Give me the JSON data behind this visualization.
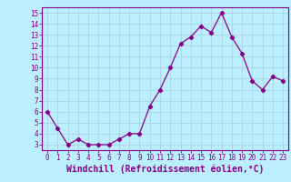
{
  "x": [
    0,
    1,
    2,
    3,
    4,
    5,
    6,
    7,
    8,
    9,
    10,
    11,
    12,
    13,
    14,
    15,
    16,
    17,
    18,
    19,
    20,
    21,
    22,
    23
  ],
  "y": [
    6.0,
    4.5,
    3.0,
    3.5,
    3.0,
    3.0,
    3.0,
    3.5,
    4.0,
    4.0,
    6.5,
    8.0,
    10.0,
    12.2,
    12.8,
    13.8,
    13.2,
    15.0,
    12.8,
    11.3,
    8.8,
    8.0,
    9.2,
    8.8
  ],
  "line_color": "#880088",
  "marker": "D",
  "marker_size": 2.2,
  "bg_color": "#bbeeff",
  "grid_color": "#aaccdd",
  "xlabel": "Windchill (Refroidissement éolien,°C)",
  "xlabel_color": "#880088",
  "tick_color": "#880088",
  "ylim": [
    2.5,
    15.5
  ],
  "xlim": [
    -0.5,
    23.5
  ],
  "yticks": [
    3,
    4,
    5,
    6,
    7,
    8,
    9,
    10,
    11,
    12,
    13,
    14,
    15
  ],
  "xticks": [
    0,
    1,
    2,
    3,
    4,
    5,
    6,
    7,
    8,
    9,
    10,
    11,
    12,
    13,
    14,
    15,
    16,
    17,
    18,
    19,
    20,
    21,
    22,
    23
  ],
  "tick_fontsize": 5.5,
  "xlabel_fontsize": 7.0,
  "spine_color": "#880088"
}
